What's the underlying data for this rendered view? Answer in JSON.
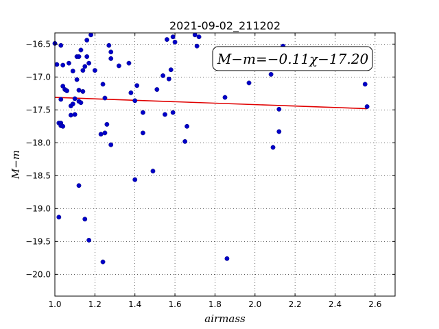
{
  "chart_data": {
    "type": "scatter",
    "title": "2021-09-02_211202",
    "xlabel": "airmass",
    "ylabel": "M−m",
    "xlim": [
      1.0,
      2.7
    ],
    "ylim": [
      -20.33,
      -16.33
    ],
    "xticks": [
      "1.0",
      "1.2",
      "1.4",
      "1.6",
      "1.8",
      "2.0",
      "2.2",
      "2.4",
      "2.6"
    ],
    "yticks": [
      "-16.5",
      "-17.0",
      "-17.5",
      "-18.0",
      "-18.5",
      "-19.0",
      "-19.5",
      "-20.0"
    ],
    "grid": true,
    "annotation": "M−m=−0.11χ−17.20",
    "point_color": "#0000c8",
    "fit_color": "#e00000",
    "fit": {
      "slope": -0.11,
      "intercept": -17.2,
      "x_range": [
        1.0,
        2.56
      ]
    },
    "points": [
      [
        1.0,
        -16.49
      ],
      [
        1.01,
        -16.81
      ],
      [
        1.02,
        -17.7
      ],
      [
        1.02,
        -19.13
      ],
      [
        1.03,
        -17.34
      ],
      [
        1.03,
        -16.52
      ],
      [
        1.03,
        -17.7
      ],
      [
        1.03,
        -17.74
      ],
      [
        1.04,
        -17.75
      ],
      [
        1.04,
        -17.14
      ],
      [
        1.04,
        -16.82
      ],
      [
        1.05,
        -17.19
      ],
      [
        1.06,
        -17.21
      ],
      [
        1.07,
        -16.79
      ],
      [
        1.08,
        -17.44
      ],
      [
        1.08,
        -17.58
      ],
      [
        1.09,
        -16.91
      ],
      [
        1.09,
        -17.41
      ],
      [
        1.1,
        -17.57
      ],
      [
        1.1,
        -17.33
      ],
      [
        1.11,
        -17.04
      ],
      [
        1.11,
        -16.69
      ],
      [
        1.12,
        -17.2
      ],
      [
        1.12,
        -17.37
      ],
      [
        1.12,
        -16.69
      ],
      [
        1.12,
        -18.65
      ],
      [
        1.13,
        -17.39
      ],
      [
        1.13,
        -16.59
      ],
      [
        1.14,
        -16.9
      ],
      [
        1.14,
        -17.22
      ],
      [
        1.15,
        -19.16
      ],
      [
        1.15,
        -16.84
      ],
      [
        1.16,
        -16.44
      ],
      [
        1.16,
        -16.69
      ],
      [
        1.17,
        -16.79
      ],
      [
        1.17,
        -19.48
      ],
      [
        1.18,
        -16.36
      ],
      [
        1.2,
        -16.9
      ],
      [
        1.23,
        -17.87
      ],
      [
        1.24,
        -17.11
      ],
      [
        1.24,
        -19.81
      ],
      [
        1.25,
        -17.32
      ],
      [
        1.25,
        -17.85
      ],
      [
        1.26,
        -17.72
      ],
      [
        1.27,
        -16.52
      ],
      [
        1.28,
        -16.72
      ],
      [
        1.28,
        -16.62
      ],
      [
        1.28,
        -18.03
      ],
      [
        1.32,
        -16.83
      ],
      [
        1.37,
        -16.79
      ],
      [
        1.38,
        -17.24
      ],
      [
        1.4,
        -17.36
      ],
      [
        1.4,
        -18.56
      ],
      [
        1.41,
        -17.13
      ],
      [
        1.44,
        -17.85
      ],
      [
        1.44,
        -17.54
      ],
      [
        1.49,
        -18.43
      ],
      [
        1.51,
        -17.19
      ],
      [
        1.54,
        -16.98
      ],
      [
        1.55,
        -17.57
      ],
      [
        1.56,
        -16.43
      ],
      [
        1.57,
        -17.03
      ],
      [
        1.58,
        -16.89
      ],
      [
        1.59,
        -16.39
      ],
      [
        1.59,
        -17.54
      ],
      [
        1.6,
        -16.47
      ],
      [
        1.65,
        -17.98
      ],
      [
        1.66,
        -17.75
      ],
      [
        1.7,
        -16.36
      ],
      [
        1.71,
        -16.53
      ],
      [
        1.72,
        -16.39
      ],
      [
        1.85,
        -17.31
      ],
      [
        1.86,
        -19.76
      ],
      [
        1.97,
        -17.09
      ],
      [
        2.08,
        -16.96
      ],
      [
        2.09,
        -18.07
      ],
      [
        2.12,
        -17.83
      ],
      [
        2.12,
        -17.49
      ],
      [
        2.14,
        -16.53
      ],
      [
        2.55,
        -17.11
      ],
      [
        2.56,
        -17.45
      ]
    ]
  }
}
